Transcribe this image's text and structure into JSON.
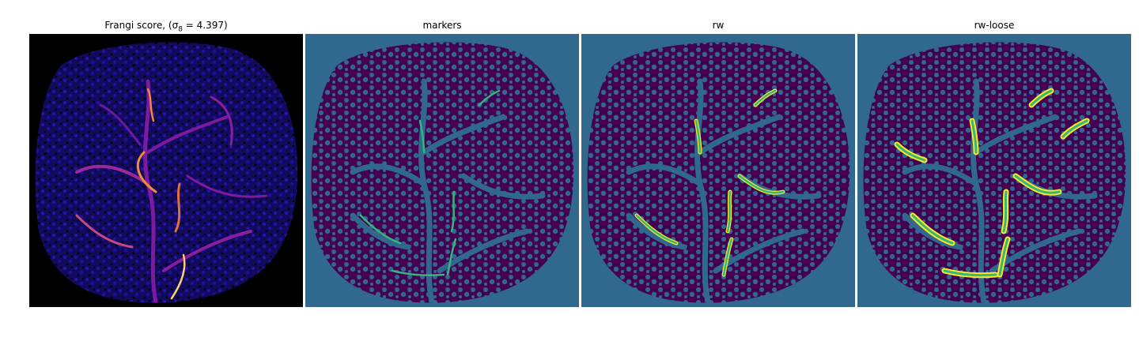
{
  "panels": [
    {
      "id": "frangi",
      "title": "Frangi score, (σ",
      "title_sub": "8",
      "title_rest": " = 4.397)"
    },
    {
      "id": "markers",
      "title": "markers"
    },
    {
      "id": "rw",
      "title": "rw"
    },
    {
      "id": "rw_loose",
      "title": "rw-loose"
    }
  ],
  "colors": {
    "frangi_background": "#000000",
    "frangi_low": "#1a0d84",
    "frangi_mid": "#8b1ea0",
    "frangi_high": "#f28a3a",
    "frangi_peak": "#fdd26a",
    "viridis_dark": "#440154",
    "viridis_teal": "#31688e",
    "viridis_green": "#35b779",
    "viridis_yellow": "#fde725"
  }
}
